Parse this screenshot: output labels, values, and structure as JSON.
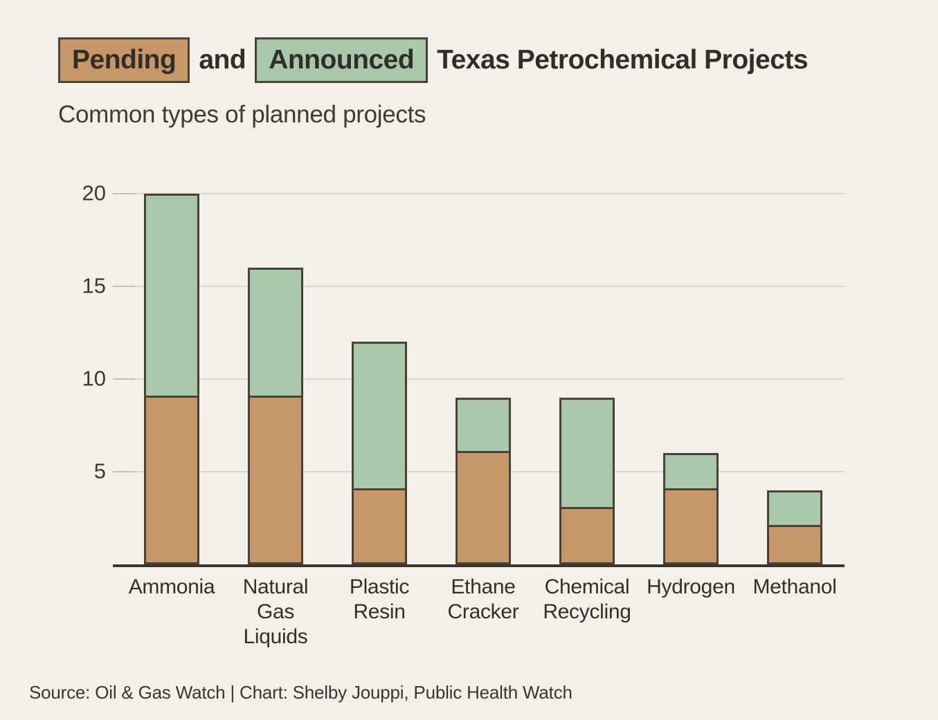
{
  "title": {
    "pending_label": "Pending",
    "conjunction": "and",
    "announced_label": "Announced",
    "remainder": "Texas Petrochemical Projects"
  },
  "subtitle": "Common types of planned projects",
  "source_credit": "Source: Oil & Gas Watch | Chart: Shelby Jouppi, Public Health Watch",
  "colors": {
    "background": "#F4EFE9",
    "pending_fill": "#C89767",
    "announced_fill": "#A8C7AB",
    "bar_border": "#474236",
    "axis_line": "#3B3730",
    "gridline": "#DCD8D0",
    "tick_mark": "#C4BFB6",
    "title_text": "#312E29",
    "label_text": "#33302B"
  },
  "chart_data": {
    "type": "bar",
    "stacked": true,
    "title": "Pending and Announced Texas Petrochemical Projects",
    "subtitle": "Common types of planned projects",
    "categories": [
      "Ammonia",
      "Natural Gas Liquids",
      "Plastic Resin",
      "Ethane Cracker",
      "Chemical Recycling",
      "Hydrogen",
      "Methanol"
    ],
    "category_label_lines": [
      [
        "Ammonia"
      ],
      [
        "Natural",
        "Gas",
        "Liquids"
      ],
      [
        "Plastic",
        "Resin"
      ],
      [
        "Ethane",
        "Cracker"
      ],
      [
        "Chemical",
        "Recycling"
      ],
      [
        "Hydrogen"
      ],
      [
        "Methanol"
      ]
    ],
    "series": [
      {
        "name": "Pending",
        "color": "#C89767",
        "values": [
          9,
          9,
          4,
          6,
          3,
          4,
          2
        ]
      },
      {
        "name": "Announced",
        "color": "#A8C7AB",
        "values": [
          11,
          7,
          8,
          3,
          6,
          2,
          2
        ]
      }
    ],
    "totals": [
      20,
      16,
      12,
      9,
      9,
      6,
      4
    ],
    "ylim": [
      0,
      20
    ],
    "yticks": [
      5,
      10,
      15,
      20
    ],
    "grid": true,
    "legend_position": "title-inline"
  }
}
